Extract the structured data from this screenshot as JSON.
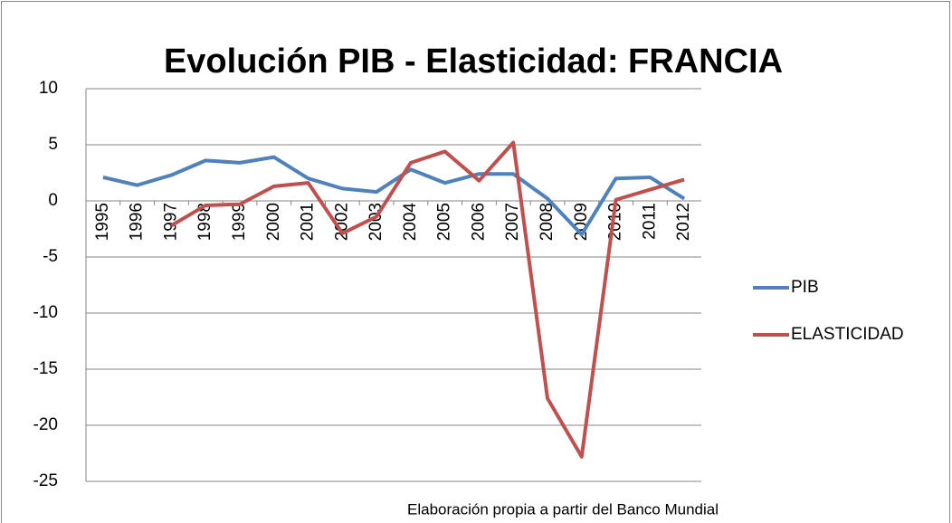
{
  "chart_data": {
    "type": "line",
    "title": "Evolución PIB - Elasticidad: FRANCIA",
    "note": "Elaboración propia a partir del  Banco  Mundial",
    "categories": [
      "1995",
      "1996",
      "1997",
      "1998",
      "1999",
      "2000",
      "2001",
      "2002",
      "2003",
      "2004",
      "2005",
      "2006",
      "2007",
      "2008",
      "2009",
      "2010",
      "2011",
      "2012"
    ],
    "series": [
      {
        "name": "PIB",
        "color": "#4f81bd",
        "values": [
          2.1,
          1.4,
          2.3,
          3.6,
          3.4,
          3.9,
          2.0,
          1.1,
          0.8,
          2.8,
          1.6,
          2.4,
          2.4,
          0.2,
          -3.0,
          2.0,
          2.1,
          0.2
        ]
      },
      {
        "name": "ELASTICIDAD",
        "color": "#c0504d",
        "values": [
          null,
          null,
          -2.2,
          -0.4,
          -0.3,
          1.3,
          1.6,
          -2.9,
          -1.4,
          3.4,
          4.4,
          1.8,
          5.2,
          -17.6,
          -22.8,
          0.1,
          1.0,
          1.9
        ]
      }
    ],
    "ylim": [
      -25,
      10
    ],
    "yticks": [
      -25,
      -20,
      -15,
      -10,
      -5,
      0,
      5,
      10
    ],
    "grid": true,
    "legend": "right"
  }
}
